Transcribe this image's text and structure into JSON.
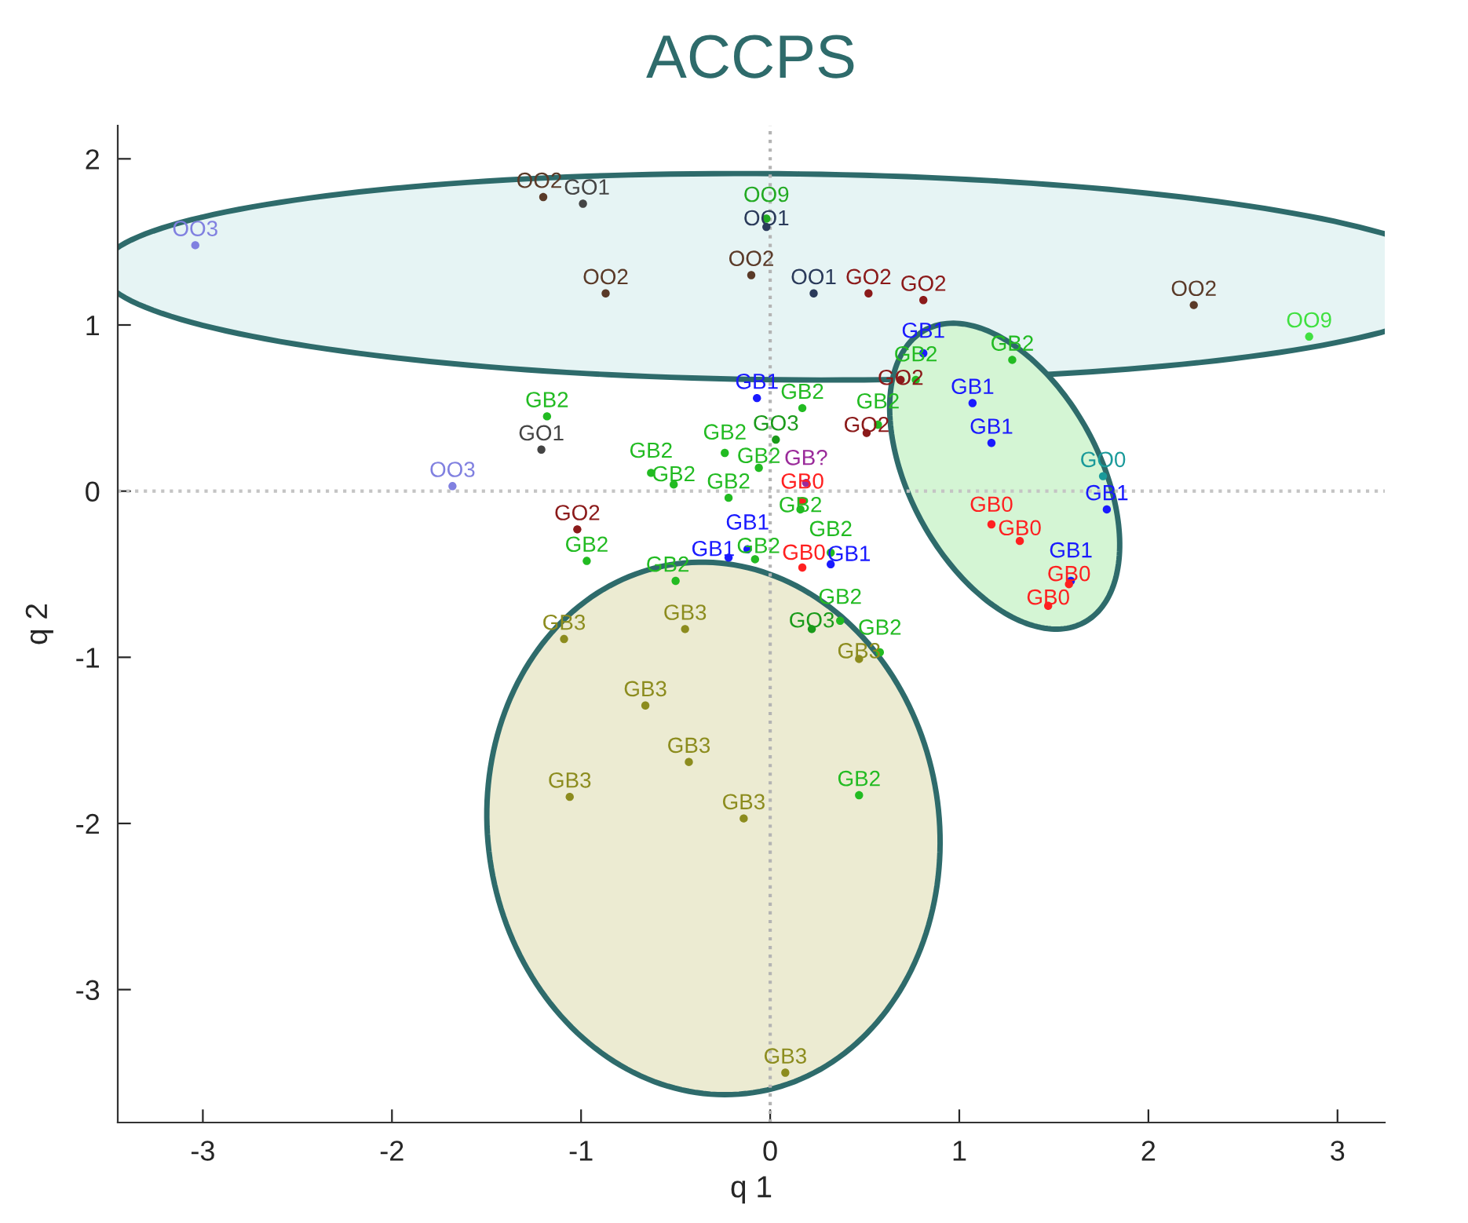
{
  "chart_data": {
    "type": "scatter",
    "title": "ACCPS",
    "xlabel": "q 1",
    "ylabel": "q 2",
    "xlim": [
      -3.45,
      3.25
    ],
    "ylim": [
      -3.8,
      2.2
    ],
    "xticks": [
      -3,
      -2,
      -1,
      0,
      1,
      2,
      3
    ],
    "yticks": [
      -3,
      -2,
      -1,
      0,
      1,
      2
    ],
    "marker": "circle",
    "grid": false,
    "ref_lines": [
      {
        "axis": "x",
        "value": 0,
        "color": "#b4b4b4",
        "line_style": "dotted"
      },
      {
        "axis": "y",
        "value": 0,
        "color": "#c4c4c4",
        "line_style": "dotted"
      }
    ],
    "series": [
      {
        "name": "OO3",
        "color": "#8080e0",
        "x": [
          -3.04,
          -1.68
        ],
        "values": [
          1.48,
          0.03
        ]
      },
      {
        "name": "OO2",
        "color": "#5a3a28",
        "x": [
          -1.2,
          -0.1,
          -0.87,
          2.24
        ],
        "values": [
          1.77,
          1.3,
          1.19,
          1.12
        ]
      },
      {
        "name": "GO1",
        "color": "#444444",
        "x": [
          -0.99,
          -1.21
        ],
        "values": [
          1.73,
          0.25
        ]
      },
      {
        "name": "OO9",
        "color": "#22aa22",
        "x": [
          -0.02
        ],
        "values": [
          1.64
        ]
      },
      {
        "name": "OO1",
        "color": "#2a3a5a",
        "x": [
          -0.02,
          0.23
        ],
        "values": [
          1.59,
          1.19
        ]
      },
      {
        "name": "GO2",
        "color": "#8b1a1a",
        "x": [
          0.52,
          0.81,
          0.69,
          0.51,
          -1.02
        ],
        "values": [
          1.19,
          1.15,
          0.67,
          0.35,
          -0.23
        ]
      },
      {
        "name": "OO9",
        "color": "#40e040",
        "x": [
          2.85
        ],
        "values": [
          0.93
        ]
      },
      {
        "name": "GB1",
        "color": "#1a1aff",
        "x": [
          0.81,
          1.07,
          -0.07,
          1.17,
          1.78,
          -0.12,
          -0.22,
          0.32,
          1.59
        ],
        "values": [
          0.83,
          0.53,
          0.56,
          0.29,
          -0.11,
          -0.35,
          -0.4,
          -0.44,
          -0.54
        ]
      },
      {
        "name": "GB2",
        "color": "#22bb22",
        "x": [
          1.28,
          0.77,
          0.17,
          -1.18,
          0.57,
          -0.24,
          -0.06,
          -0.63,
          -0.51,
          -0.22,
          0.16,
          -0.97,
          -0.08,
          0.32,
          -0.5,
          0.37,
          0.58,
          0.47
        ],
        "values": [
          0.79,
          0.67,
          0.5,
          0.45,
          0.4,
          0.23,
          0.14,
          0.11,
          0.04,
          -0.04,
          -0.11,
          -0.42,
          -0.41,
          -0.37,
          -0.54,
          -0.78,
          -0.97,
          -1.83
        ]
      },
      {
        "name": "GO3",
        "color": "#1a9a1a",
        "x": [
          0.03,
          0.22
        ],
        "values": [
          0.31,
          -0.83
        ]
      },
      {
        "name": "GB?",
        "color": "#9a2a9a",
        "x": [
          0.19
        ],
        "values": [
          0.05
        ]
      },
      {
        "name": "GB0",
        "color": "#ff2020",
        "x": [
          0.17,
          1.17,
          1.32,
          0.17,
          1.58,
          1.47
        ],
        "values": [
          -0.06,
          -0.2,
          -0.3,
          -0.46,
          -0.56,
          -0.69
        ]
      },
      {
        "name": "GO0",
        "color": "#1a9a9a",
        "x": [
          1.76
        ],
        "values": [
          0.09
        ]
      },
      {
        "name": "GB3",
        "color": "#8c8c1e",
        "x": [
          -1.09,
          -0.45,
          0.47,
          -0.66,
          -0.43,
          -1.06,
          -0.14,
          0.08
        ],
        "values": [
          -0.89,
          -0.83,
          -1.01,
          -1.29,
          -1.63,
          -1.84,
          -1.97,
          -3.5
        ]
      }
    ]
  }
}
